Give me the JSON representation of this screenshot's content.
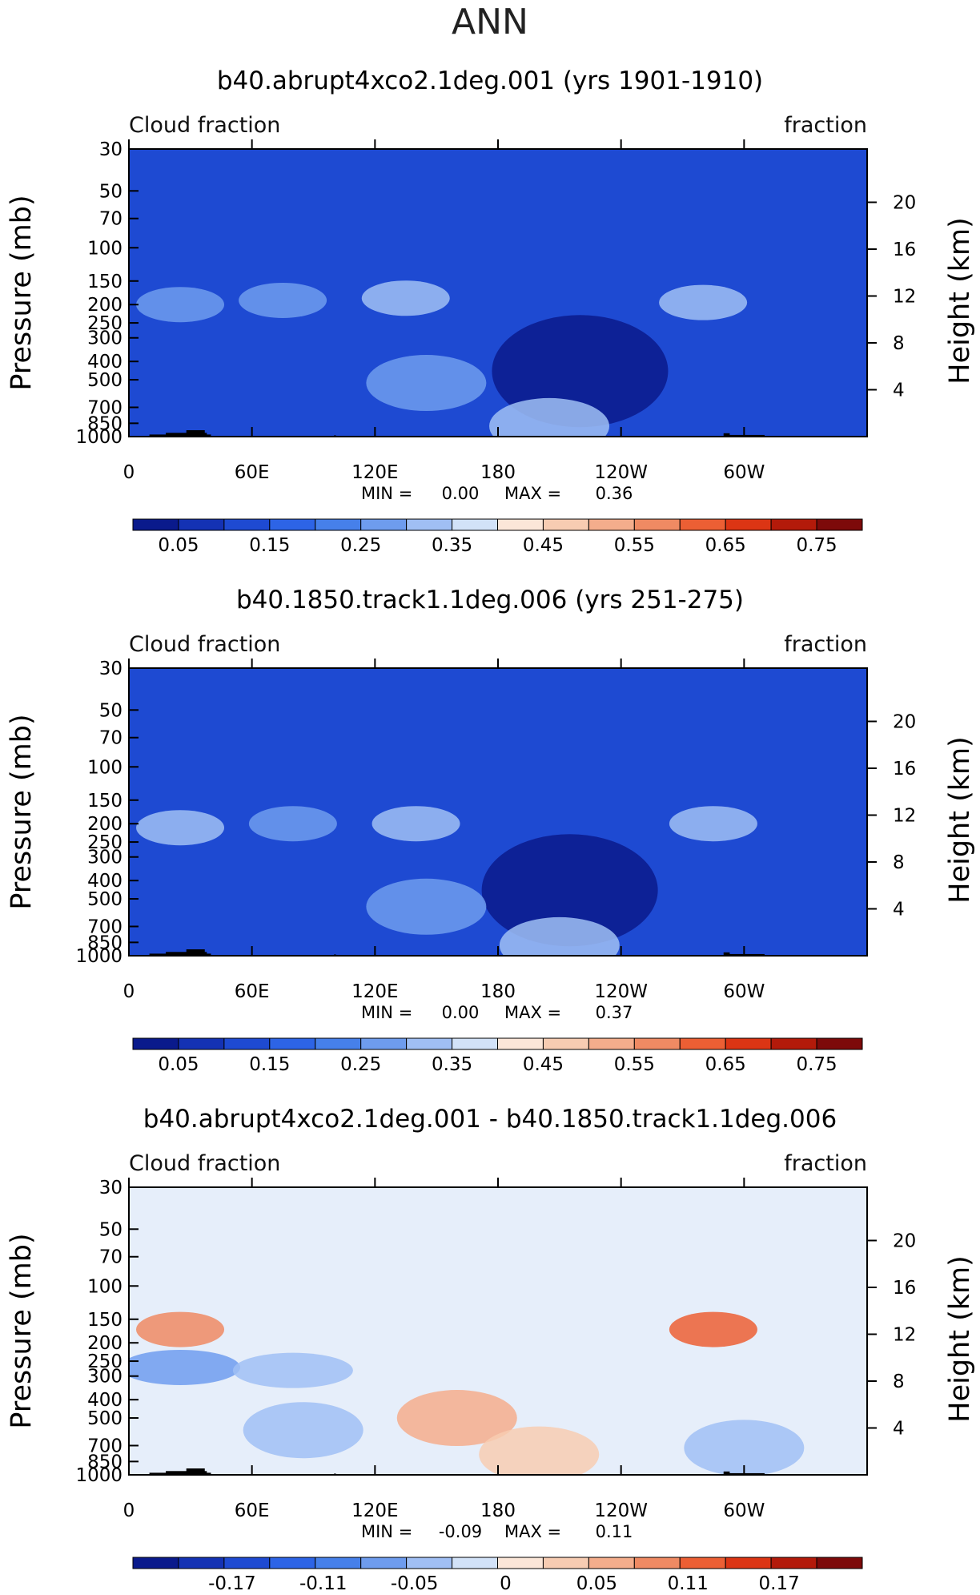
{
  "page_title": "ANN",
  "chart_data": [
    {
      "type": "heatmap",
      "title": "b40.abrupt4xco2.1deg.001 (yrs 1901-1910)",
      "left_label": "Cloud fraction",
      "right_label": "fraction",
      "xlabel": "",
      "ylabel": "Pressure (mb)",
      "y2label": "Height (km)",
      "x_ticks": [
        "0",
        "60E",
        "120E",
        "180",
        "120W",
        "60W"
      ],
      "y_ticks": [
        "30",
        "50",
        "70",
        "100",
        "150",
        "200",
        "250",
        "300",
        "400",
        "500",
        "700",
        "850",
        "1000"
      ],
      "y2_ticks": [
        "20",
        "16",
        "12",
        "8",
        "4"
      ],
      "min_label": "MIN =",
      "min_value": "0.00",
      "max_label": "MAX =",
      "max_value": "0.36",
      "colorbar_ticks": [
        "0.05",
        "0.15",
        "0.25",
        "0.35",
        "0.45",
        "0.55",
        "0.65",
        "0.75"
      ],
      "colorbar_colors": [
        "#0a1a8c",
        "#1432b4",
        "#1e4ad2",
        "#2d64e6",
        "#4680ea",
        "#6e9cee",
        "#a0bff4",
        "#d2e2f8",
        "#fbe6d8",
        "#f7ccb2",
        "#f4ad8c",
        "#ef8a63",
        "#ec5f34",
        "#dc3514",
        "#b31a0a",
        "#7d0a0a"
      ],
      "background_color": "#1e4ad2",
      "features": [
        {
          "name": "upper-band-left",
          "lon": 25,
          "p": 200,
          "value": 0.3
        },
        {
          "name": "upper-band-60E",
          "lon": 75,
          "p": 190,
          "value": 0.3
        },
        {
          "name": "upper-band-120E",
          "lon": 135,
          "p": 185,
          "value": 0.32
        },
        {
          "name": "upper-band-90W",
          "lon": 280,
          "p": 195,
          "value": 0.33
        },
        {
          "name": "dry-subtropics",
          "lon": 220,
          "p": 450,
          "value": 0.03
        },
        {
          "name": "mid-tropics",
          "lon": 145,
          "p": 520,
          "value": 0.28
        },
        {
          "name": "low-stratus",
          "lon": 205,
          "p": 880,
          "value": 0.34
        }
      ]
    },
    {
      "type": "heatmap",
      "title": "b40.1850.track1.1deg.006 (yrs 251-275)",
      "left_label": "Cloud fraction",
      "right_label": "fraction",
      "xlabel": "",
      "ylabel": "Pressure (mb)",
      "y2label": "Height (km)",
      "x_ticks": [
        "0",
        "60E",
        "120E",
        "180",
        "120W",
        "60W"
      ],
      "y_ticks": [
        "30",
        "50",
        "70",
        "100",
        "150",
        "200",
        "250",
        "300",
        "400",
        "500",
        "700",
        "850",
        "1000"
      ],
      "y2_ticks": [
        "20",
        "16",
        "12",
        "8",
        "4"
      ],
      "min_label": "MIN =",
      "min_value": "0.00",
      "max_label": "MAX =",
      "max_value": "0.37",
      "colorbar_ticks": [
        "0.05",
        "0.15",
        "0.25",
        "0.35",
        "0.45",
        "0.55",
        "0.65",
        "0.75"
      ],
      "colorbar_colors": [
        "#0a1a8c",
        "#1432b4",
        "#1e4ad2",
        "#2d64e6",
        "#4680ea",
        "#6e9cee",
        "#a0bff4",
        "#d2e2f8",
        "#fbe6d8",
        "#f7ccb2",
        "#f4ad8c",
        "#ef8a63",
        "#ec5f34",
        "#dc3514",
        "#b31a0a",
        "#7d0a0a"
      ],
      "background_color": "#1e4ad2",
      "features": [
        {
          "name": "upper-band-left",
          "lon": 25,
          "p": 210,
          "value": 0.33
        },
        {
          "name": "upper-band-60E",
          "lon": 80,
          "p": 200,
          "value": 0.3
        },
        {
          "name": "upper-band-120E",
          "lon": 140,
          "p": 200,
          "value": 0.32
        },
        {
          "name": "upper-band-90W",
          "lon": 285,
          "p": 200,
          "value": 0.33
        },
        {
          "name": "dry-subtropics",
          "lon": 215,
          "p": 450,
          "value": 0.03
        },
        {
          "name": "mid-tropics",
          "lon": 145,
          "p": 550,
          "value": 0.26
        },
        {
          "name": "low-stratus",
          "lon": 210,
          "p": 880,
          "value": 0.35
        }
      ]
    },
    {
      "type": "heatmap",
      "title": "b40.abrupt4xco2.1deg.001 - b40.1850.track1.1deg.006",
      "left_label": "Cloud fraction",
      "right_label": "fraction",
      "xlabel": "",
      "ylabel": "Pressure (mb)",
      "y2label": "Height (km)",
      "x_ticks": [
        "0",
        "60E",
        "120E",
        "180",
        "120W",
        "60W"
      ],
      "y_ticks": [
        "30",
        "50",
        "70",
        "100",
        "150",
        "200",
        "250",
        "300",
        "400",
        "500",
        "700",
        "850",
        "1000"
      ],
      "y2_ticks": [
        "20",
        "16",
        "12",
        "8",
        "4"
      ],
      "min_label": "MIN =",
      "min_value": "-0.09",
      "max_label": "MAX =",
      "max_value": "0.11",
      "colorbar_ticks": [
        "-0.17",
        "-0.11",
        "-0.05",
        "0",
        "0.05",
        "0.11",
        "0.17"
      ],
      "colorbar_colors": [
        "#0a1a8c",
        "#1432b4",
        "#1e4ad2",
        "#2d64e6",
        "#4680ea",
        "#6e9cee",
        "#a0bff4",
        "#d2e2f8",
        "#fbe6d8",
        "#f7ccb2",
        "#f4ad8c",
        "#ef8a63",
        "#ec5f34",
        "#dc3514",
        "#b31a0a",
        "#7d0a0a"
      ],
      "background_color": "#e6eefa",
      "features": [
        {
          "name": "upper-increase-left",
          "lon": 25,
          "p": 170,
          "value": 0.08
        },
        {
          "name": "upper-increase-90W",
          "lon": 285,
          "p": 170,
          "value": 0.11
        },
        {
          "name": "decrease-300mb-left",
          "lon": 25,
          "p": 270,
          "value": -0.06
        },
        {
          "name": "decrease-300mb-60E",
          "lon": 80,
          "p": 280,
          "value": -0.05
        },
        {
          "name": "increase-500mb",
          "lon": 160,
          "p": 500,
          "value": 0.06
        },
        {
          "name": "decrease-midlevel",
          "lon": 85,
          "p": 580,
          "value": -0.05
        },
        {
          "name": "increase-lower-180",
          "lon": 200,
          "p": 780,
          "value": 0.04
        },
        {
          "name": "decrease-lower-60W",
          "lon": 300,
          "p": 720,
          "value": -0.05
        }
      ]
    }
  ]
}
